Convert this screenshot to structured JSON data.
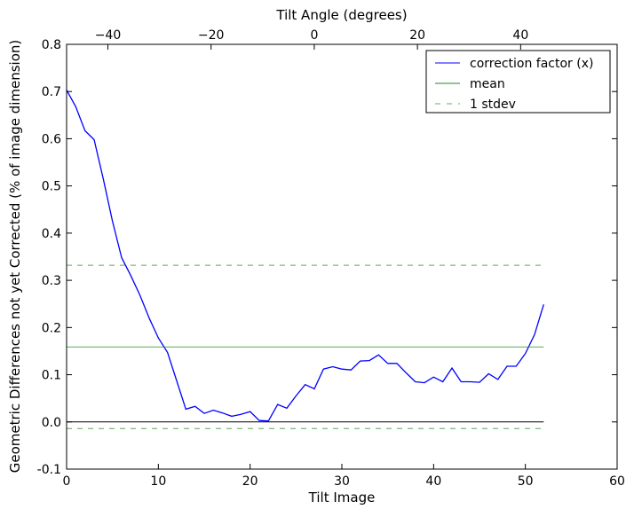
{
  "chart_data": {
    "type": "line",
    "xlabel": "Tilt Image",
    "ylabel": "Geometric Differences not yet Corrected (% of image dimension)",
    "top_xlabel": "Tilt Angle (degrees)",
    "xlim": [
      0,
      60
    ],
    "ylim": [
      -0.1,
      0.8
    ],
    "top_xlim": [
      -48,
      58.7
    ],
    "xticks": [
      0,
      10,
      20,
      30,
      40,
      50,
      60
    ],
    "yticks": [
      -0.1,
      0.0,
      0.1,
      0.2,
      0.3,
      0.4,
      0.5,
      0.6,
      0.7,
      0.8
    ],
    "top_xticks": [
      -40,
      -20,
      0,
      20,
      40
    ],
    "grid": false,
    "legend_position": "top-right",
    "series": [
      {
        "name": "correction factor (x)",
        "color": "#0000ff",
        "style": "solid",
        "x": [
          0,
          1,
          2,
          3,
          4,
          5,
          6,
          7,
          8,
          9,
          10,
          11,
          12,
          13,
          14,
          15,
          16,
          17,
          18,
          19,
          20,
          21,
          22,
          23,
          24,
          25,
          26,
          27,
          28,
          29,
          30,
          31,
          32,
          33,
          34,
          35,
          36,
          37,
          38,
          39,
          40,
          41,
          42,
          43,
          44,
          45,
          46,
          47,
          48,
          49,
          50,
          51,
          52
        ],
        "values": [
          0.703,
          0.668,
          0.617,
          0.598,
          0.515,
          0.425,
          0.348,
          0.31,
          0.268,
          0.22,
          0.178,
          0.147,
          0.087,
          0.027,
          0.033,
          0.018,
          0.025,
          0.019,
          0.012,
          0.016,
          0.022,
          0.003,
          0.002,
          0.037,
          0.029,
          0.055,
          0.079,
          0.07,
          0.112,
          0.117,
          0.112,
          0.11,
          0.129,
          0.13,
          0.142,
          0.124,
          0.124,
          0.104,
          0.085,
          0.083,
          0.095,
          0.085,
          0.114,
          0.085,
          0.085,
          0.084,
          0.102,
          0.09,
          0.118,
          0.118,
          0.145,
          0.185,
          0.249
        ]
      },
      {
        "name": "mean",
        "color": "#228b22",
        "style": "solid",
        "x": [
          0,
          52
        ],
        "values": [
          0.159,
          0.159
        ]
      },
      {
        "name": "1 stdev",
        "color": "#228b22",
        "style": "dashed",
        "x": [
          0,
          52
        ],
        "values": [
          0.332,
          0.332
        ]
      },
      {
        "name": "1 stdev lower",
        "color": "#228b22",
        "style": "dashed",
        "x": [
          0,
          52
        ],
        "values": [
          -0.014,
          -0.014
        ],
        "in_legend": false
      },
      {
        "name": "zero",
        "color": "#000000",
        "style": "solid",
        "x": [
          0,
          52
        ],
        "values": [
          0,
          0
        ],
        "in_legend": false
      }
    ]
  }
}
